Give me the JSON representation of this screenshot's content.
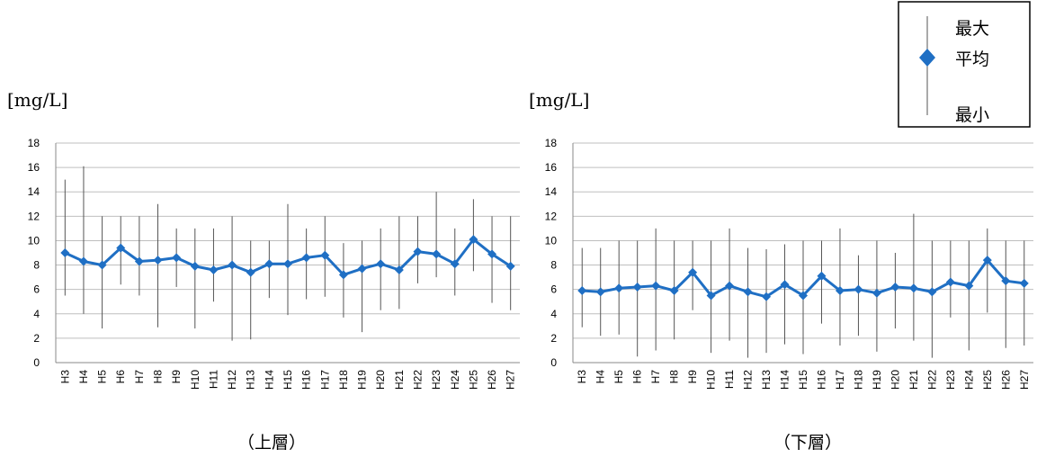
{
  "legend": {
    "max_label": "最大",
    "avg_label": "平均",
    "min_label": "最小",
    "marker_color": "#1f6fc4"
  },
  "chart_data": [
    {
      "type": "line",
      "subtitle": "（上層）",
      "unit_label": "[mg/L]",
      "categories": [
        "H3",
        "H4",
        "H5",
        "H6",
        "H7",
        "H8",
        "H9",
        "H10",
        "H11",
        "H12",
        "H13",
        "H14",
        "H15",
        "H16",
        "H17",
        "H18",
        "H19",
        "H20",
        "H21",
        "H22",
        "H23",
        "H24",
        "H25",
        "H26",
        "H27"
      ],
      "ylim": [
        0,
        18
      ],
      "yticks": [
        "0",
        "2",
        "4",
        "6",
        "8",
        "10",
        "12",
        "14",
        "16",
        "18"
      ],
      "grid": true,
      "series": [
        {
          "values": [
            9.0,
            8.3,
            8.0,
            9.4,
            8.3,
            8.4,
            8.6,
            7.9,
            7.6,
            8.0,
            7.4,
            8.1,
            8.1,
            8.6,
            8.8,
            7.2,
            7.7,
            8.1,
            7.6,
            9.1,
            8.9,
            8.1,
            10.1,
            8.9,
            7.9
          ]
        }
      ],
      "max": [
        15.0,
        16.1,
        12.0,
        12.0,
        12.0,
        13.0,
        11.0,
        11.0,
        11.0,
        12.0,
        10.0,
        10.0,
        13.0,
        11.0,
        12.0,
        9.8,
        10.0,
        11.0,
        12.0,
        12.0,
        14.0,
        11.0,
        13.4,
        12.0,
        12.0
      ],
      "min": [
        5.5,
        4.0,
        2.8,
        6.4,
        5.5,
        2.9,
        6.2,
        2.8,
        5.0,
        1.8,
        1.9,
        5.3,
        3.9,
        5.2,
        5.4,
        3.7,
        2.5,
        4.3,
        4.4,
        6.5,
        7.0,
        5.5,
        7.5,
        4.9,
        4.3
      ]
    },
    {
      "type": "line",
      "subtitle": "（下層）",
      "unit_label": "[mg/L]",
      "categories": [
        "H3",
        "H4",
        "H5",
        "H6",
        "H7",
        "H8",
        "H9",
        "H10",
        "H11",
        "H12",
        "H13",
        "H14",
        "H15",
        "H16",
        "H17",
        "H18",
        "H19",
        "H20",
        "H21",
        "H22",
        "H23",
        "H24",
        "H25",
        "H26",
        "H27"
      ],
      "ylim": [
        0,
        18
      ],
      "yticks": [
        "0",
        "2",
        "4",
        "6",
        "8",
        "10",
        "12",
        "14",
        "16",
        "18"
      ],
      "grid": true,
      "series": [
        {
          "values": [
            5.9,
            5.8,
            6.1,
            6.2,
            6.3,
            5.9,
            7.4,
            5.5,
            6.3,
            5.8,
            5.4,
            6.4,
            5.5,
            7.1,
            5.9,
            6.0,
            5.7,
            6.2,
            6.1,
            5.8,
            6.6,
            6.3,
            8.4,
            6.7,
            6.5
          ]
        }
      ],
      "max": [
        9.4,
        9.4,
        10.0,
        10.0,
        11.0,
        10.0,
        10.0,
        10.0,
        11.0,
        9.4,
        9.3,
        9.7,
        10.0,
        10.0,
        11.0,
        8.8,
        10.0,
        9.0,
        12.2,
        10.0,
        10.0,
        10.0,
        11.0,
        10.0,
        10.0
      ],
      "min": [
        2.9,
        2.2,
        2.3,
        0.5,
        1.0,
        1.9,
        4.3,
        0.8,
        1.8,
        0.4,
        0.8,
        1.5,
        0.7,
        3.2,
        1.4,
        2.2,
        0.9,
        2.8,
        1.8,
        0.4,
        3.7,
        1.0,
        4.1,
        1.2,
        1.4
      ]
    }
  ]
}
